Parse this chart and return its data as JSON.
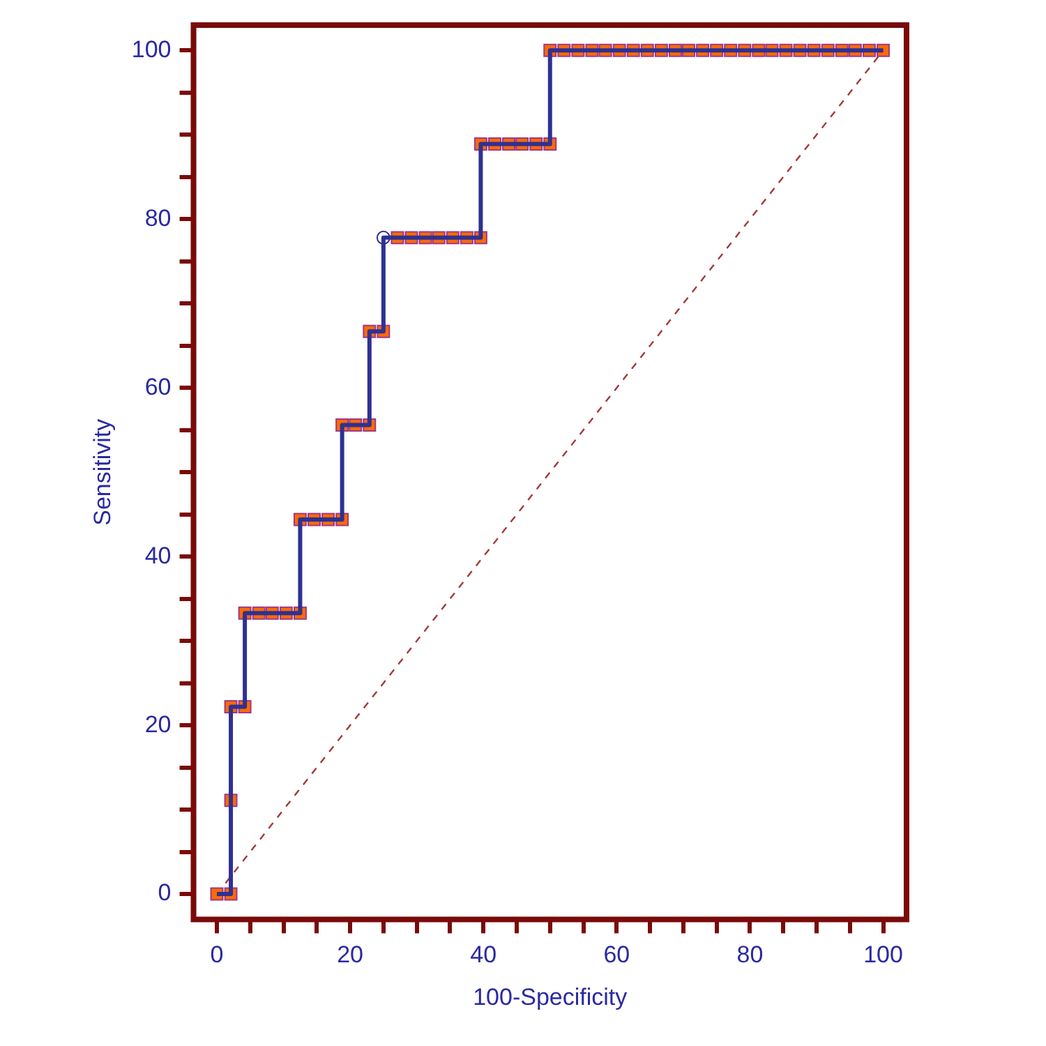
{
  "chart_data": {
    "type": "line",
    "xlabel": "100-Specificity",
    "ylabel": "Sensitivity",
    "xlim": [
      -3.5,
      103.5
    ],
    "ylim": [
      -3,
      103
    ],
    "xticks": [
      0,
      {
        "value": 5,
        "label": null
      },
      {
        "value": 10,
        "label": null
      },
      {
        "value": 15,
        "label": null
      },
      20,
      {
        "value": 25,
        "label": null
      },
      {
        "value": 30,
        "label": null
      },
      {
        "value": 35,
        "label": null
      },
      40,
      {
        "value": 45,
        "label": null
      },
      {
        "value": 50,
        "label": null
      },
      {
        "value": 55,
        "label": null
      },
      60,
      {
        "value": 65,
        "label": null
      },
      {
        "value": 70,
        "label": null
      },
      {
        "value": 75,
        "label": null
      },
      80,
      {
        "value": 85,
        "label": null
      },
      {
        "value": 90,
        "label": null
      },
      {
        "value": 95,
        "label": null
      },
      100
    ],
    "yticks": [
      0,
      {
        "value": 5,
        "label": null
      },
      {
        "value": 10,
        "label": null
      },
      {
        "value": 15,
        "label": null
      },
      20,
      {
        "value": 25,
        "label": null
      },
      {
        "value": 30,
        "label": null
      },
      {
        "value": 35,
        "label": null
      },
      40,
      {
        "value": 45,
        "label": null
      },
      {
        "value": 50,
        "label": null
      },
      {
        "value": 55,
        "label": null
      },
      60,
      {
        "value": 65,
        "label": null
      },
      {
        "value": 70,
        "label": null
      },
      {
        "value": 75,
        "label": null
      },
      80,
      {
        "value": 85,
        "label": null
      },
      {
        "value": 90,
        "label": null
      },
      {
        "value": 95,
        "label": null
      },
      100
    ],
    "grid": false,
    "legend": false,
    "series": [
      {
        "type": "line",
        "color": "#2e3192",
        "marker": "none",
        "line_style": "solid",
        "x": [
          0,
          2.1,
          2.1,
          4.2,
          4.2,
          6.3,
          8.3,
          10.4,
          12.5,
          12.5,
          14.6,
          16.7,
          18.8,
          18.8,
          20.8,
          22.9,
          22.9,
          25,
          25,
          27.1,
          29.2,
          31.3,
          33.3,
          35.4,
          37.5,
          39.6,
          39.6,
          41.7,
          43.8,
          45.8,
          47.9,
          50,
          50,
          52.1,
          54.2,
          56.3,
          58.3,
          60.4,
          62.5,
          64.6,
          66.7,
          68.8,
          70.8,
          72.9,
          75,
          77.1,
          79.2,
          81.3,
          83.3,
          85.4,
          87.5,
          89.6,
          91.7,
          93.8,
          95.8,
          97.9,
          100
        ],
        "values": [
          0,
          0,
          22.2,
          22.2,
          33.3,
          33.3,
          33.3,
          33.3,
          33.3,
          44.4,
          44.4,
          44.4,
          44.4,
          55.6,
          55.6,
          55.6,
          66.7,
          66.7,
          77.8,
          77.8,
          77.8,
          77.8,
          77.8,
          77.8,
          77.8,
          77.8,
          88.9,
          88.9,
          88.9,
          88.9,
          88.9,
          88.9,
          100,
          100,
          100,
          100,
          100,
          100,
          100,
          100,
          100,
          100,
          100,
          100,
          100,
          100,
          100,
          100,
          100,
          100,
          100,
          100,
          100,
          100,
          100,
          100,
          100
        ]
      },
      {
        "type": "scatter",
        "color": "#ff6a00",
        "marker": "square",
        "x": [
          0,
          2.1,
          2.1,
          2.1,
          4.2,
          4.2,
          6.3,
          8.3,
          10.4,
          12.5,
          12.5,
          14.6,
          16.7,
          18.8,
          18.8,
          20.8,
          22.9,
          22.9,
          25,
          27.1,
          29.2,
          31.3,
          33.3,
          35.4,
          37.5,
          39.6,
          39.6,
          41.7,
          43.8,
          45.8,
          47.9,
          50,
          50,
          52.1,
          54.2,
          56.3,
          58.3,
          60.4,
          62.5,
          64.6,
          66.7,
          68.8,
          70.8,
          72.9,
          75,
          77.1,
          79.2,
          81.3,
          83.3,
          85.4,
          87.5,
          89.6,
          91.7,
          93.8,
          95.8,
          97.9,
          100
        ],
        "values": [
          0,
          0,
          11.1,
          22.2,
          22.2,
          33.3,
          33.3,
          33.3,
          33.3,
          33.3,
          44.4,
          44.4,
          44.4,
          44.4,
          55.6,
          55.6,
          55.6,
          66.7,
          66.7,
          77.8,
          77.8,
          77.8,
          77.8,
          77.8,
          77.8,
          77.8,
          88.9,
          88.9,
          88.9,
          88.9,
          88.9,
          88.9,
          100,
          100,
          100,
          100,
          100,
          100,
          100,
          100,
          100,
          100,
          100,
          100,
          100,
          100,
          100,
          100,
          100,
          100,
          100,
          100,
          100,
          100,
          100,
          100,
          100
        ]
      },
      {
        "type": "scatter",
        "color": "#ffffff",
        "marker": "circle",
        "x": [
          25
        ],
        "values": [
          77.8
        ]
      },
      {
        "type": "line",
        "color": "#a33a3a",
        "marker": "none",
        "line_style": "dashed",
        "x": [
          0,
          100
        ],
        "values": [
          0,
          100
        ]
      }
    ]
  }
}
